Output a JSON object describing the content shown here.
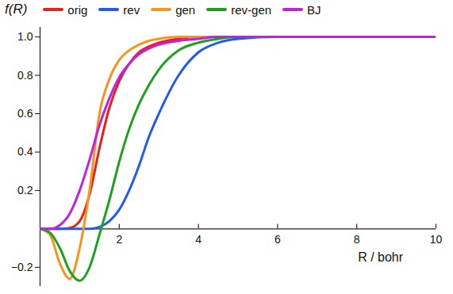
{
  "chart_data": {
    "type": "line",
    "x_label": "R / bohr",
    "y_label": "f(R)",
    "x": [
      0,
      0.25,
      0.5,
      0.75,
      1,
      1.25,
      1.5,
      1.75,
      2,
      2.25,
      2.5,
      2.75,
      3,
      3.5,
      4,
      4.5,
      5,
      6,
      8,
      10
    ],
    "series": [
      {
        "name": "orig",
        "color": "#e8201a",
        "values": [
          0,
          0,
          0,
          0.005,
          0.04,
          0.18,
          0.42,
          0.63,
          0.77,
          0.86,
          0.92,
          0.95,
          0.97,
          0.99,
          1,
          1,
          1,
          1,
          1,
          1
        ]
      },
      {
        "name": "rev",
        "color": "#1f5bf0",
        "values": [
          0,
          0,
          0,
          0,
          0,
          0,
          0.01,
          0.04,
          0.1,
          0.2,
          0.33,
          0.48,
          0.6,
          0.8,
          0.92,
          0.97,
          0.99,
          1,
          1,
          1
        ]
      },
      {
        "name": "gen",
        "color": "#f7941d",
        "values": [
          0,
          -0.03,
          -0.18,
          -0.26,
          -0.1,
          0.2,
          0.6,
          0.78,
          0.88,
          0.93,
          0.96,
          0.98,
          0.99,
          1,
          1,
          1,
          1,
          1,
          1,
          1
        ]
      },
      {
        "name": "rev-gen",
        "color": "#1aa31a",
        "values": [
          0,
          -0.02,
          -0.1,
          -0.22,
          -0.27,
          -0.2,
          -0.03,
          0.15,
          0.35,
          0.52,
          0.65,
          0.75,
          0.83,
          0.93,
          0.97,
          0.99,
          1,
          1,
          1,
          1
        ]
      },
      {
        "name": "BJ",
        "color": "#c020e0",
        "values": [
          0,
          0,
          0.02,
          0.08,
          0.2,
          0.36,
          0.54,
          0.68,
          0.79,
          0.86,
          0.91,
          0.94,
          0.96,
          0.98,
          0.99,
          1,
          1,
          1,
          1,
          1
        ]
      }
    ],
    "xlim": [
      0,
      10
    ],
    "ylim": [
      -0.3,
      1.05
    ],
    "xticks": [
      2,
      4,
      6,
      8,
      10
    ],
    "yticks": [
      {
        "value": -0.2,
        "label": "−0.2"
      },
      0.2,
      0.4,
      0.6,
      0.8,
      {
        "value": 1,
        "label": "1.0"
      }
    ],
    "grid": false,
    "legend": "top"
  }
}
